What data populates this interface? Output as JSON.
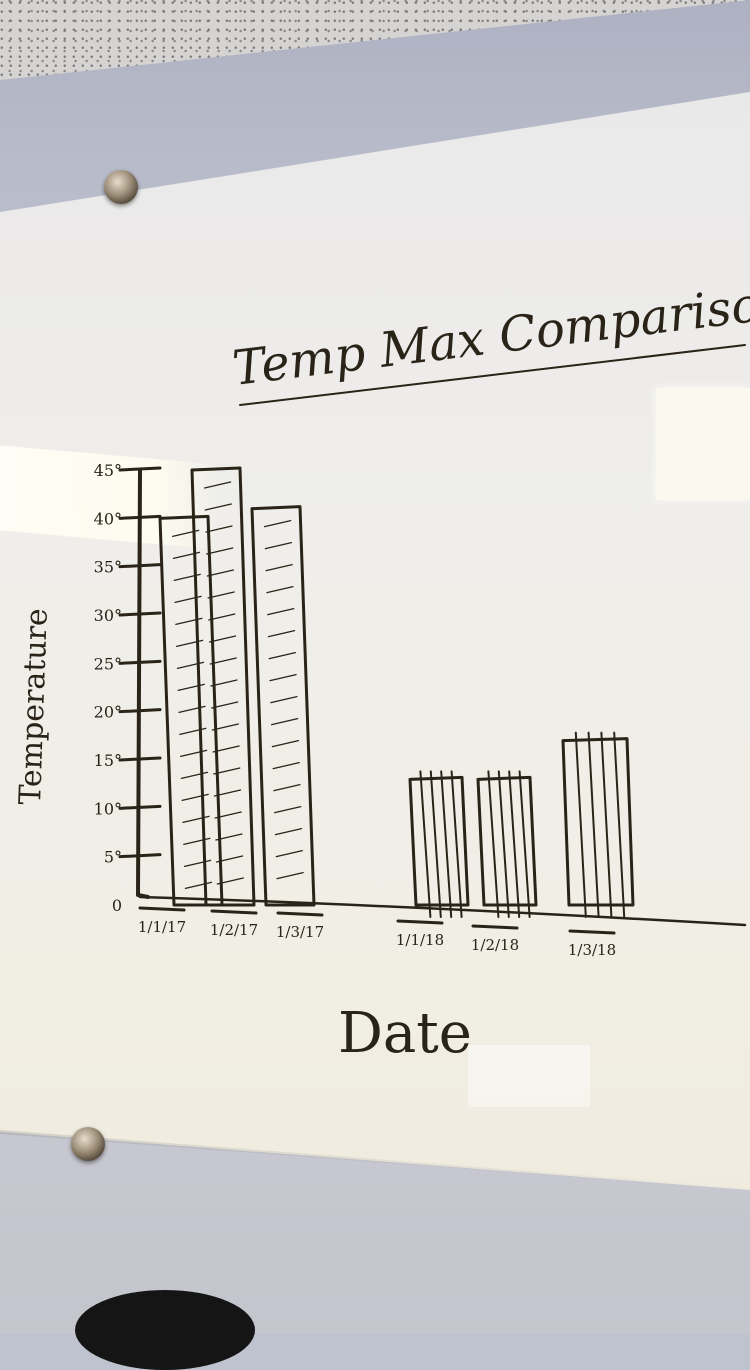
{
  "chart_data": {
    "type": "bar",
    "title": "Temp Max Comparison",
    "xlabel": "Date",
    "ylabel": "Temperature",
    "categories": [
      "1/1/17",
      "1/2/17",
      "1/3/17",
      "1/1/18",
      "1/2/18",
      "1/3/18"
    ],
    "values": [
      40,
      45,
      41,
      13,
      13,
      17
    ],
    "ylim": [
      0,
      45
    ],
    "yticks": [
      "0",
      "5°",
      "10°",
      "15°",
      "20°",
      "25°",
      "30°",
      "35°",
      "40°",
      "45°"
    ],
    "legend": "none",
    "grid": false,
    "ink_color": "#2a2418"
  }
}
